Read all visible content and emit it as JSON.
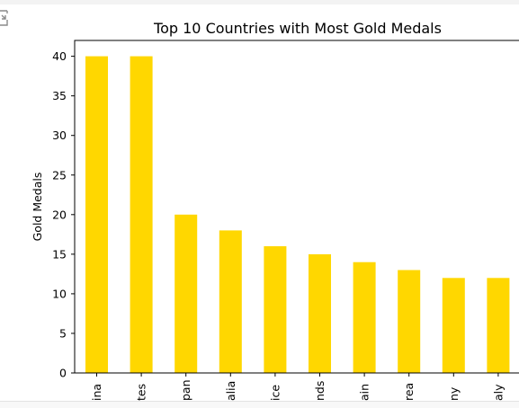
{
  "chart_data": {
    "type": "bar",
    "title": "Top 10 Countries with Most Gold Medals",
    "xlabel": "",
    "ylabel": "Gold Medals",
    "categories": [
      "ina",
      "tes",
      "pan",
      "alia",
      "ice",
      "nds",
      "ain",
      "rea",
      "ny",
      "aly"
    ],
    "values": [
      40,
      40,
      20,
      18,
      16,
      15,
      14,
      13,
      12,
      12
    ],
    "ylim": [
      0,
      42
    ],
    "yticks": [
      0,
      5,
      10,
      15,
      20,
      25,
      30,
      35,
      40
    ],
    "bar_color": "#ffd700",
    "grid": false,
    "legend": "none"
  },
  "toolbar": {
    "icon": "expand-output-icon"
  }
}
